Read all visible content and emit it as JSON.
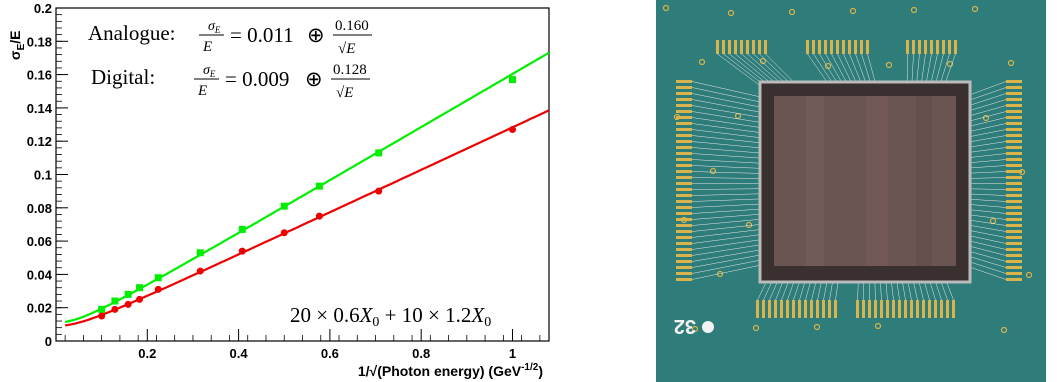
{
  "chart_data": {
    "type": "scatter",
    "xlabel": "1/√(Photon energy) (GeV",
    "xlabel_sup": "-1/2",
    "xlabel_close": ")",
    "ylabel_sigma": "σ",
    "ylabel_sub": "E",
    "ylabel_rest": "/E",
    "xlim": [
      0,
      1.08
    ],
    "ylim": [
      0,
      0.2
    ],
    "x_ticks": [
      0.2,
      0.4,
      0.6,
      0.8,
      1
    ],
    "x_tick_labels": [
      "0.2",
      "0.4",
      "0.6",
      "0.8",
      "1"
    ],
    "y_ticks": [
      0,
      0.02,
      0.04,
      0.06,
      0.08,
      0.1,
      0.12,
      0.14,
      0.16,
      0.18,
      0.2
    ],
    "y_tick_labels": [
      "0",
      "0.02",
      "0.04",
      "0.06",
      "0.08",
      "0.1",
      "0.12",
      "0.14",
      "0.16",
      "0.18",
      "0.2"
    ],
    "grid": false,
    "legend_position": "top-left",
    "series": [
      {
        "name": "Analogue",
        "color": "#00ee00",
        "x": [
          0.1,
          0.129,
          0.158,
          0.183,
          0.224,
          0.316,
          0.408,
          0.5,
          0.577,
          0.707,
          1.0
        ],
        "y": [
          0.019,
          0.024,
          0.028,
          0.032,
          0.038,
          0.053,
          0.067,
          0.081,
          0.093,
          0.113,
          0.157
        ],
        "fit": {
          "a": 0.011,
          "b": 0.16
        },
        "formula_label": "Analogue:",
        "formula_text": "σE/E = 0.011 ⊕ 0.160/√E"
      },
      {
        "name": "Digital",
        "color": "#ee0000",
        "x": [
          0.1,
          0.129,
          0.158,
          0.183,
          0.224,
          0.316,
          0.408,
          0.5,
          0.577,
          0.707,
          1.0
        ],
        "y": [
          0.015,
          0.019,
          0.022,
          0.025,
          0.031,
          0.042,
          0.054,
          0.065,
          0.075,
          0.09,
          0.127
        ],
        "fit": {
          "a": 0.009,
          "b": 0.128
        },
        "formula_label": "Digital:",
        "formula_text": "σE/E = 0.009 ⊕ 0.128/√E"
      }
    ],
    "annotation": "20 × 0.6X0 + 10 × 1.2X0"
  },
  "formula": {
    "sigma": "σ",
    "sub": "E",
    "E": "E",
    "sqrtE": "√E",
    "oplus": "⊕",
    "analogue_label": "Analogue:",
    "analogue_const": "= 0.011",
    "analogue_num": "0.160",
    "digital_label": "Digital:",
    "digital_const": "= 0.009",
    "digital_num": "0.128"
  },
  "annotation_parts": {
    "a": "20 × 0.6",
    "x0": "X",
    "sub0": "0",
    "b": " + 10 × 1.2"
  },
  "photo": {
    "board_color": "#2f7d7a",
    "chip_color": "#6b5552"
  }
}
